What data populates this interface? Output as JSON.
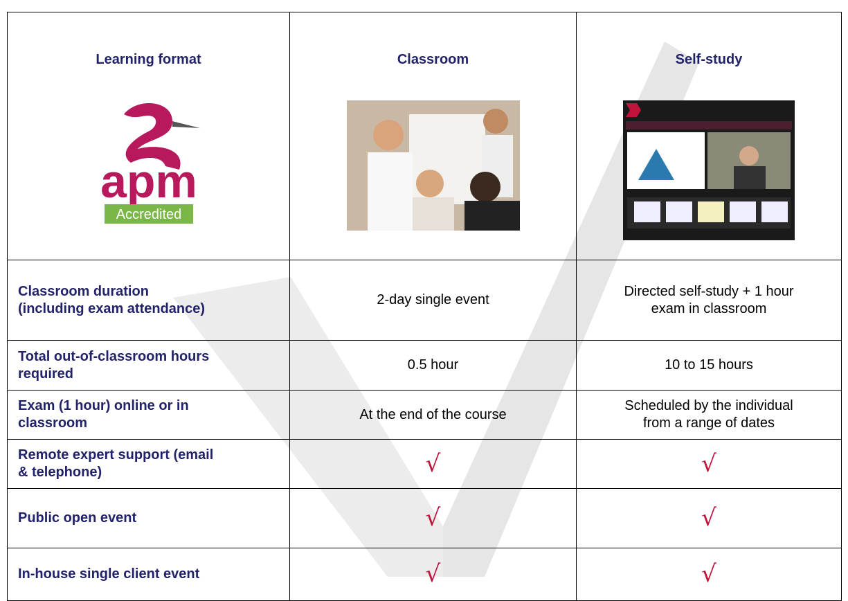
{
  "table": {
    "header": [
      "Learning format",
      "Classroom",
      "Self-study"
    ],
    "logo": {
      "mark": "apm",
      "badge": "Accredited"
    },
    "rows": [
      [
        "Classroom duration\n(including exam attendance)",
        "2-day single event",
        "Directed self-study + 1 hour\nexam in classroom"
      ],
      [
        "Total out-of-classroom hours\nrequired",
        "0.5 hour",
        "10 to 15 hours"
      ],
      [
        "Exam (1 hour) online or in\nclassroom",
        "At the end of the course",
        "Scheduled by the individual\nfrom a range of dates"
      ],
      [
        "Remote expert support (email\n& telephone)",
        "√",
        "√"
      ],
      [
        "Public open event",
        "√",
        "√"
      ],
      [
        "In-house single client event",
        "√",
        "√"
      ]
    ]
  }
}
